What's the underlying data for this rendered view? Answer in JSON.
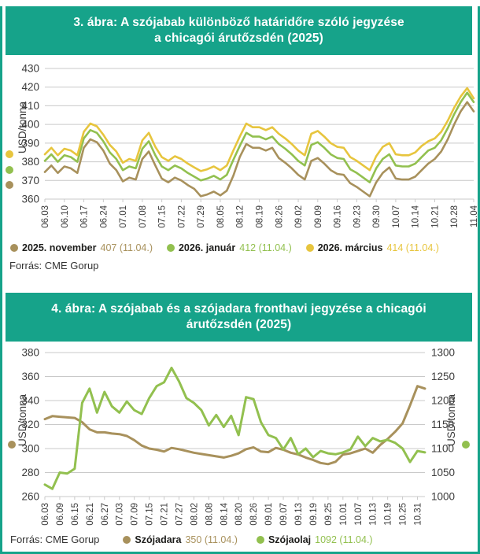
{
  "colors": {
    "teal": "#16a38a",
    "yellow": "#e7c53e",
    "green": "#92c04f",
    "tan": "#a8915c",
    "grid": "#c9c9c9",
    "axis_text": "#3b3b3b"
  },
  "chart_data": [
    {
      "type": "line",
      "title_line1": "3. ábra: A szójabab különböző határidőre szóló jegyzése",
      "title_line2": "a chicagói árutőzsdén (2025)",
      "ylabel": "USD/tonna",
      "ylim": [
        360,
        430
      ],
      "yticks": [
        360,
        370,
        380,
        390,
        400,
        410,
        420,
        430
      ],
      "grid": true,
      "legend_position": "bottom",
      "x_labels": [
        "06.03",
        "06.10",
        "06.17",
        "06.24",
        "07.01",
        "07.08",
        "07.15",
        "07.22",
        "07.29",
        "08.05",
        "08.12",
        "08.19",
        "08.26",
        "09.02",
        "09.09",
        "09.16",
        "09.23",
        "09.30",
        "10.07",
        "10.14",
        "10.21",
        "10.28",
        "11.04"
      ],
      "source": "Forrás: CME Gorup",
      "series": [
        {
          "name": "2025. november",
          "color_key": "tan",
          "axis": "left",
          "values": [
            374.5,
            378,
            374,
            377.5,
            376.5,
            374,
            387.5,
            392,
            390.5,
            386,
            379,
            375.5,
            369.5,
            371.5,
            370.5,
            381.5,
            385.5,
            378,
            371,
            369,
            371.5,
            370,
            367.5,
            365.5,
            361.5,
            362.5,
            364,
            362,
            364.5,
            372.5,
            382.5,
            389.5,
            387.5,
            387.5,
            386,
            387.5,
            382,
            379.5,
            376.5,
            373,
            370.5,
            380.5,
            382,
            379,
            375.5,
            373.5,
            373,
            368.5,
            366.5,
            364,
            361.5,
            369,
            374,
            377,
            371,
            370.5,
            370.5,
            372,
            375.5,
            379,
            381.5,
            385.5,
            392,
            400,
            407,
            412,
            407
          ]
        },
        {
          "name": "2026. január",
          "color_key": "green",
          "axis": "left",
          "values": [
            380.5,
            384,
            380,
            383.5,
            382.5,
            380,
            392.5,
            397,
            395.5,
            391,
            385,
            381.5,
            375.5,
            377.5,
            376.5,
            387,
            391,
            383.5,
            377.5,
            375.5,
            378,
            376.5,
            374,
            372,
            370,
            371,
            372.5,
            370.5,
            373,
            381,
            388.5,
            395.5,
            393.5,
            393.5,
            392,
            393.5,
            389.5,
            387,
            384,
            380.5,
            378,
            389,
            390.5,
            387.5,
            384,
            382,
            381.5,
            376,
            374,
            371.5,
            369,
            376.5,
            381.5,
            384,
            378,
            377.5,
            377.5,
            379,
            382.5,
            386,
            387.5,
            391.5,
            398,
            405.5,
            412,
            417,
            412
          ]
        },
        {
          "name": "2026. március",
          "color_key": "yellow",
          "axis": "left",
          "values": [
            384,
            387.5,
            383.5,
            387,
            386,
            383.5,
            396,
            400.5,
            399,
            394.5,
            389,
            385.5,
            379.5,
            381.5,
            380.5,
            391.5,
            395.5,
            388,
            382.5,
            380.5,
            383,
            381.5,
            379,
            377,
            375,
            376,
            377.5,
            375.5,
            378,
            386,
            393.5,
            400.5,
            398.5,
            398.5,
            397,
            398.5,
            395,
            392.5,
            389.5,
            386,
            383.5,
            395,
            396.5,
            393.5,
            390,
            388,
            387.5,
            382.5,
            380.5,
            378,
            375.5,
            383,
            388,
            390,
            384,
            383.5,
            383.5,
            385,
            388.5,
            391,
            392.5,
            396,
            402,
            409,
            415,
            419.5,
            414
          ]
        }
      ],
      "legend": {
        "items": [
          {
            "name": "2025. november",
            "value_text": "407 (11.04.)",
            "color_key": "tan"
          },
          {
            "name": "2026. január",
            "value_text": "412 (11.04.)",
            "color_key": "green"
          },
          {
            "name": "2026. március",
            "value_text": "414 (11.04.)",
            "color_key": "yellow"
          }
        ]
      }
    },
    {
      "type": "line",
      "title_line1": "4. ábra: A szójabab és a szójadara fronthavi jegyzése a chicagói",
      "title_line2": "árutőzsdén (2025)",
      "ylabel": "USD/tonna",
      "y2label": "USD/tonna",
      "ylim": [
        260,
        380
      ],
      "yticks": [
        260,
        280,
        300,
        320,
        340,
        360,
        380
      ],
      "y2lim": [
        1000,
        1300
      ],
      "y2ticks": [
        1000,
        1050,
        1100,
        1150,
        1200,
        1250,
        1300
      ],
      "grid": true,
      "legend_position": "bottom",
      "x_labels": [
        "06.03",
        "06.09",
        "06.15",
        "06.21",
        "06.27",
        "07.03",
        "07.09",
        "07.15",
        "07.21",
        "07.27",
        "08.02",
        "08.08",
        "08.14",
        "08.20",
        "08.26",
        "09.01",
        "09.07",
        "09.13",
        "09.19",
        "09.25",
        "10.01",
        "10.07",
        "10.13",
        "10.19",
        "10.25",
        "10.31"
      ],
      "source": "Forrás: CME Gorup",
      "series": [
        {
          "name": "Szójadara",
          "color_key": "tan",
          "axis": "left",
          "values": [
            324.5,
            327,
            326.5,
            326,
            325.5,
            322,
            316,
            313.5,
            313.5,
            312.5,
            312,
            310.5,
            307,
            302.5,
            300,
            299,
            297.5,
            300.5,
            299.5,
            298,
            296.5,
            295.5,
            294.5,
            293.5,
            292.5,
            294,
            296,
            299.5,
            301,
            297.5,
            297,
            300.5,
            299,
            296.5,
            295,
            292.5,
            290.5,
            288,
            287,
            289,
            295,
            296,
            298,
            300,
            296.5,
            303,
            308,
            314,
            321,
            336,
            352,
            350
          ]
        },
        {
          "name": "Szójaolaj",
          "color_key": "green",
          "axis": "right",
          "values": [
            1025,
            1016,
            1050,
            1048,
            1058,
            1195,
            1225,
            1175,
            1218,
            1188,
            1175,
            1198,
            1180,
            1172,
            1205,
            1230,
            1238,
            1268,
            1240,
            1205,
            1195,
            1180,
            1148,
            1170,
            1145,
            1168,
            1128,
            1207,
            1203,
            1155,
            1128,
            1122,
            1098,
            1122,
            1088,
            1100,
            1082,
            1095,
            1090,
            1088,
            1092,
            1098,
            1125,
            1105,
            1122,
            1115,
            1118,
            1112,
            1100,
            1072,
            1095,
            1092
          ]
        }
      ],
      "legend": {
        "items": [
          {
            "name": "Szójadara",
            "value_text": "350 (11.04.)",
            "color_key": "tan"
          },
          {
            "name": "Szójaolaj",
            "value_text": "1092 (11.04.)",
            "color_key": "green"
          }
        ]
      }
    }
  ]
}
